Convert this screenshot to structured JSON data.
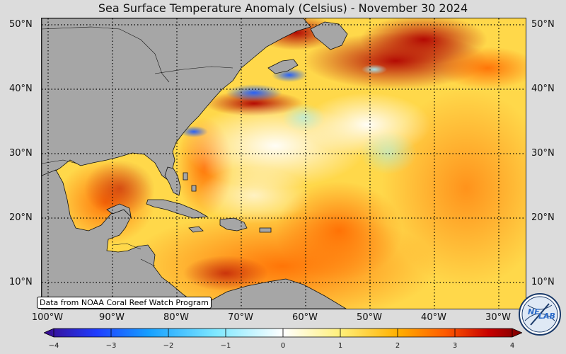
{
  "title": "Sea Surface Temperature Anomaly (Celsius) - November 30 2024",
  "lat_labels": [
    "50°N",
    "40°N",
    "30°N",
    "20°N",
    "10°N"
  ],
  "lon_labels": [
    "100°W",
    "90°W",
    "80°W",
    "70°W",
    "60°W",
    "50°W",
    "40°W",
    "30°W"
  ],
  "source_note": "Data from NOAA Coral Reef Watch Program",
  "colorbar": {
    "min": -4,
    "max": 4,
    "ticks": [
      "−4",
      "−3",
      "−2",
      "−1",
      "0",
      "1",
      "2",
      "3",
      "4"
    ],
    "colors": [
      "#3a0a8c",
      "#1e3cff",
      "#16a0ff",
      "#7fe8ff",
      "#ffffff",
      "#fff07a",
      "#ffb000",
      "#ff5a00",
      "#c80000",
      "#7a0000"
    ]
  },
  "logo": {
    "text_top": "NE",
    "text_bottom": "LAB",
    "icon": "nexlab-globe-logo"
  },
  "colors": {
    "land": "#a6a6a6",
    "anomaly_warm": "#ff8c00",
    "anomaly_hot": "#c80000",
    "anomaly_cold": "#1e5cff"
  }
}
